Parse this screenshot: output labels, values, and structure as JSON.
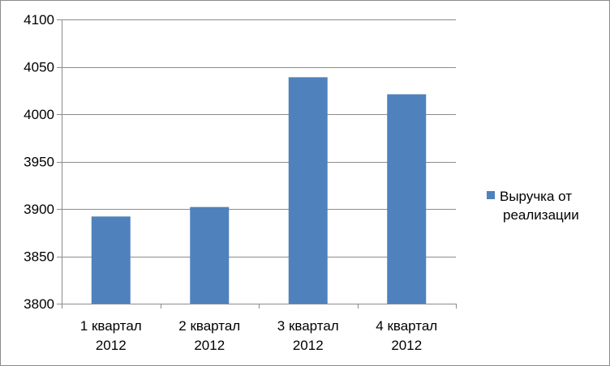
{
  "chart_data": {
    "type": "bar",
    "categories": [
      [
        "1 квартал",
        "2012"
      ],
      [
        "2 квартал",
        "2012"
      ],
      [
        "3 квартал",
        "2012"
      ],
      [
        "4 квартал",
        "2012"
      ]
    ],
    "series": [
      {
        "name": [
          "Выручка от",
          "реализации"
        ],
        "values": [
          3892,
          3902,
          4039,
          4021
        ],
        "color": "#4f81bd"
      }
    ],
    "ylim": [
      3800,
      4100
    ],
    "yticks": [
      3800,
      3850,
      3900,
      3950,
      4000,
      4050,
      4100
    ],
    "grid": true,
    "legend": "right"
  }
}
